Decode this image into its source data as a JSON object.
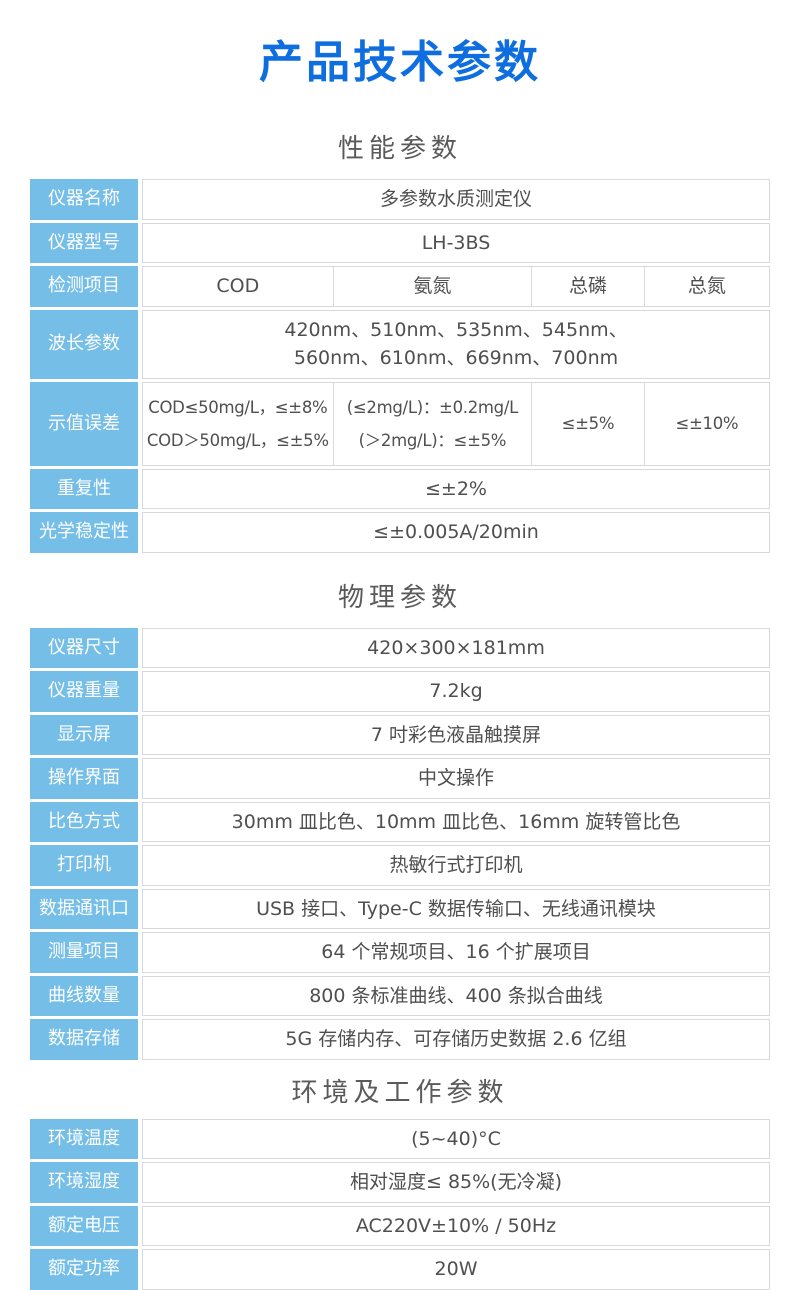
{
  "title": "产品技术参数",
  "colors": {
    "title_blue": "#0e6ee0",
    "label_blue": "#74bee7",
    "border_gray": "#d9d9d9",
    "heading_text": "#5a5a5a",
    "value_text": "#4f4f4f"
  },
  "sections": [
    {
      "heading": "性能参数",
      "rows": [
        {
          "label": "仪器名称",
          "cells": [
            {
              "w": 100,
              "lines": [
                "多参数水质测定仪"
              ]
            }
          ]
        },
        {
          "label": "仪器型号",
          "cells": [
            {
              "w": 100,
              "lines": [
                "LH-3BS"
              ]
            }
          ]
        },
        {
          "label": "检测项目",
          "cells": [
            {
              "w": 30.3,
              "lines": [
                "COD"
              ]
            },
            {
              "w": 31.7,
              "lines": [
                "氨氮"
              ]
            },
            {
              "w": 18,
              "lines": [
                "总磷"
              ]
            },
            {
              "w": 20,
              "lines": [
                "总氮"
              ]
            }
          ]
        },
        {
          "label": "波长参数",
          "cells": [
            {
              "w": 100,
              "lines": [
                "420nm、510nm、535nm、545nm、",
                "560nm、610nm、669nm、700nm"
              ]
            }
          ]
        },
        {
          "label": "示值误差",
          "small": true,
          "cells": [
            {
              "w": 30.3,
              "lines": [
                "COD≤50mg/L，≤±8%",
                "COD＞50mg/L，≤±5%"
              ]
            },
            {
              "w": 31.7,
              "lines": [
                "(≤2mg/L)：±0.2mg/L",
                "(＞2mg/L)：≤±5%"
              ]
            },
            {
              "w": 18,
              "lines": [
                "≤±5%"
              ]
            },
            {
              "w": 20,
              "lines": [
                "≤±10%"
              ]
            }
          ]
        },
        {
          "label": "重复性",
          "cells": [
            {
              "w": 100,
              "lines": [
                "≤±2%"
              ]
            }
          ]
        },
        {
          "label": "光学稳定性",
          "cells": [
            {
              "w": 100,
              "lines": [
                "≤±0.005A/20min"
              ]
            }
          ]
        }
      ]
    },
    {
      "heading": "物理参数",
      "rows": [
        {
          "label": "仪器尺寸",
          "cells": [
            {
              "w": 100,
              "lines": [
                "420×300×181mm"
              ]
            }
          ]
        },
        {
          "label": "仪器重量",
          "cells": [
            {
              "w": 100,
              "lines": [
                "7.2kg"
              ]
            }
          ]
        },
        {
          "label": "显示屏",
          "cells": [
            {
              "w": 100,
              "lines": [
                "7 吋彩色液晶触摸屏"
              ]
            }
          ]
        },
        {
          "label": "操作界面",
          "cells": [
            {
              "w": 100,
              "lines": [
                "中文操作"
              ]
            }
          ]
        },
        {
          "label": "比色方式",
          "cells": [
            {
              "w": 100,
              "lines": [
                "30mm 皿比色、10mm 皿比色、16mm 旋转管比色"
              ]
            }
          ]
        },
        {
          "label": "打印机",
          "cells": [
            {
              "w": 100,
              "lines": [
                "热敏行式打印机"
              ]
            }
          ]
        },
        {
          "label": "数据通讯口",
          "cells": [
            {
              "w": 100,
              "lines": [
                "USB 接口、Type-C 数据传输口、无线通讯模块"
              ]
            }
          ]
        },
        {
          "label": "测量项目",
          "cells": [
            {
              "w": 100,
              "lines": [
                "64 个常规项目、16 个扩展项目"
              ]
            }
          ]
        },
        {
          "label": "曲线数量",
          "cells": [
            {
              "w": 100,
              "lines": [
                "800 条标准曲线、400 条拟合曲线"
              ]
            }
          ]
        },
        {
          "label": "数据存储",
          "cells": [
            {
              "w": 100,
              "lines": [
                "5G 存储内存、可存储历史数据 2.6 亿组"
              ]
            }
          ]
        }
      ]
    },
    {
      "heading": "环境及工作参数",
      "rows": [
        {
          "label": "环境温度",
          "cells": [
            {
              "w": 100,
              "lines": [
                "(5~40)°C"
              ]
            }
          ]
        },
        {
          "label": "环境湿度",
          "cells": [
            {
              "w": 100,
              "lines": [
                "相对湿度≤ 85%(无冷凝)"
              ]
            }
          ]
        },
        {
          "label": "额定电压",
          "cells": [
            {
              "w": 100,
              "lines": [
                "AC220V±10% / 50Hz"
              ]
            }
          ]
        },
        {
          "label": "额定功率",
          "cells": [
            {
              "w": 100,
              "lines": [
                "20W"
              ]
            }
          ]
        }
      ]
    }
  ]
}
